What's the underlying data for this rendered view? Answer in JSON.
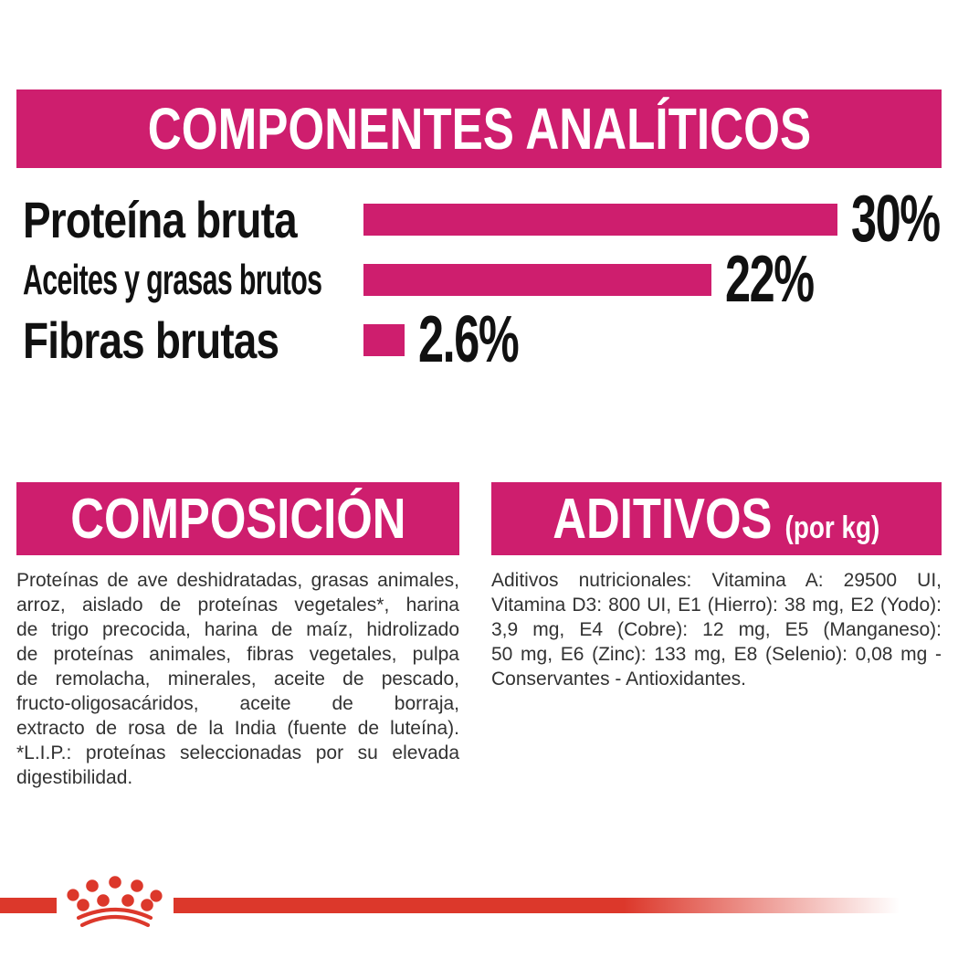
{
  "colors": {
    "magenta": "#ce1e6e",
    "red": "#dc382b",
    "heading_text": "#ffffff",
    "label_text": "#111111",
    "body_text": "#323232"
  },
  "analytic": {
    "title": "COMPONENTES ANALÍTICOS"
  },
  "chart_data": {
    "type": "bar",
    "orientation": "horizontal",
    "title": "COMPONENTES ANALÍTICOS",
    "categories": [
      "Proteína bruta",
      "Aceites y grasas brutos",
      "Fibras brutas"
    ],
    "values": [
      30,
      22,
      2.6
    ],
    "value_labels": [
      "30%",
      "22%",
      "2.6%"
    ],
    "unit": "%",
    "xlim": [
      0,
      30
    ],
    "bar_color": "#ce1e6e",
    "grid": false,
    "legend": false
  },
  "composition": {
    "title": "COMPOSICIÓN",
    "lines": [
      {
        "text": "Proteínas de ave deshidratadas, grasas animales,",
        "justify": true
      },
      {
        "text": "arroz, aislado de proteínas vegetales*, harina",
        "justify": true
      },
      {
        "text": "de trigo precocida, harina de maíz, hidrolizado",
        "justify": true
      },
      {
        "text": "de proteínas animales, fibras vegetales, pulpa",
        "justify": true
      },
      {
        "text": "de remolacha, minerales, aceite de pescado,",
        "justify": true
      },
      {
        "text": "fructo-oligosacáridos, aceite de borraja,",
        "justify": true
      },
      {
        "text": "extracto de rosa de la India (fuente de luteína).",
        "justify": true
      },
      {
        "text": "*L.I.P.: proteínas seleccionadas por su elevada",
        "justify": true
      },
      {
        "text": "digestibilidad.",
        "justify": false
      }
    ]
  },
  "additives": {
    "title": "ADITIVOS",
    "title_suffix": "(por kg)",
    "lines": [
      {
        "text": "Aditivos nutricionales: Vitamina A: 29500 UI,",
        "justify": true
      },
      {
        "text": "Vitamina D3: 800 UI, E1 (Hierro): 38 mg, E2 (Yodo):",
        "justify": true
      },
      {
        "text": "3,9 mg, E4 (Cobre): 12 mg, E5 (Manganeso):",
        "justify": true
      },
      {
        "text": "50 mg, E6 (Zinc): 133 mg, E8 (Selenio): 0,08 mg -",
        "justify": true
      },
      {
        "text": "Conservantes - Antioxidantes.",
        "justify": false
      }
    ]
  },
  "footer": {
    "logo": "royal-canin-crown"
  }
}
